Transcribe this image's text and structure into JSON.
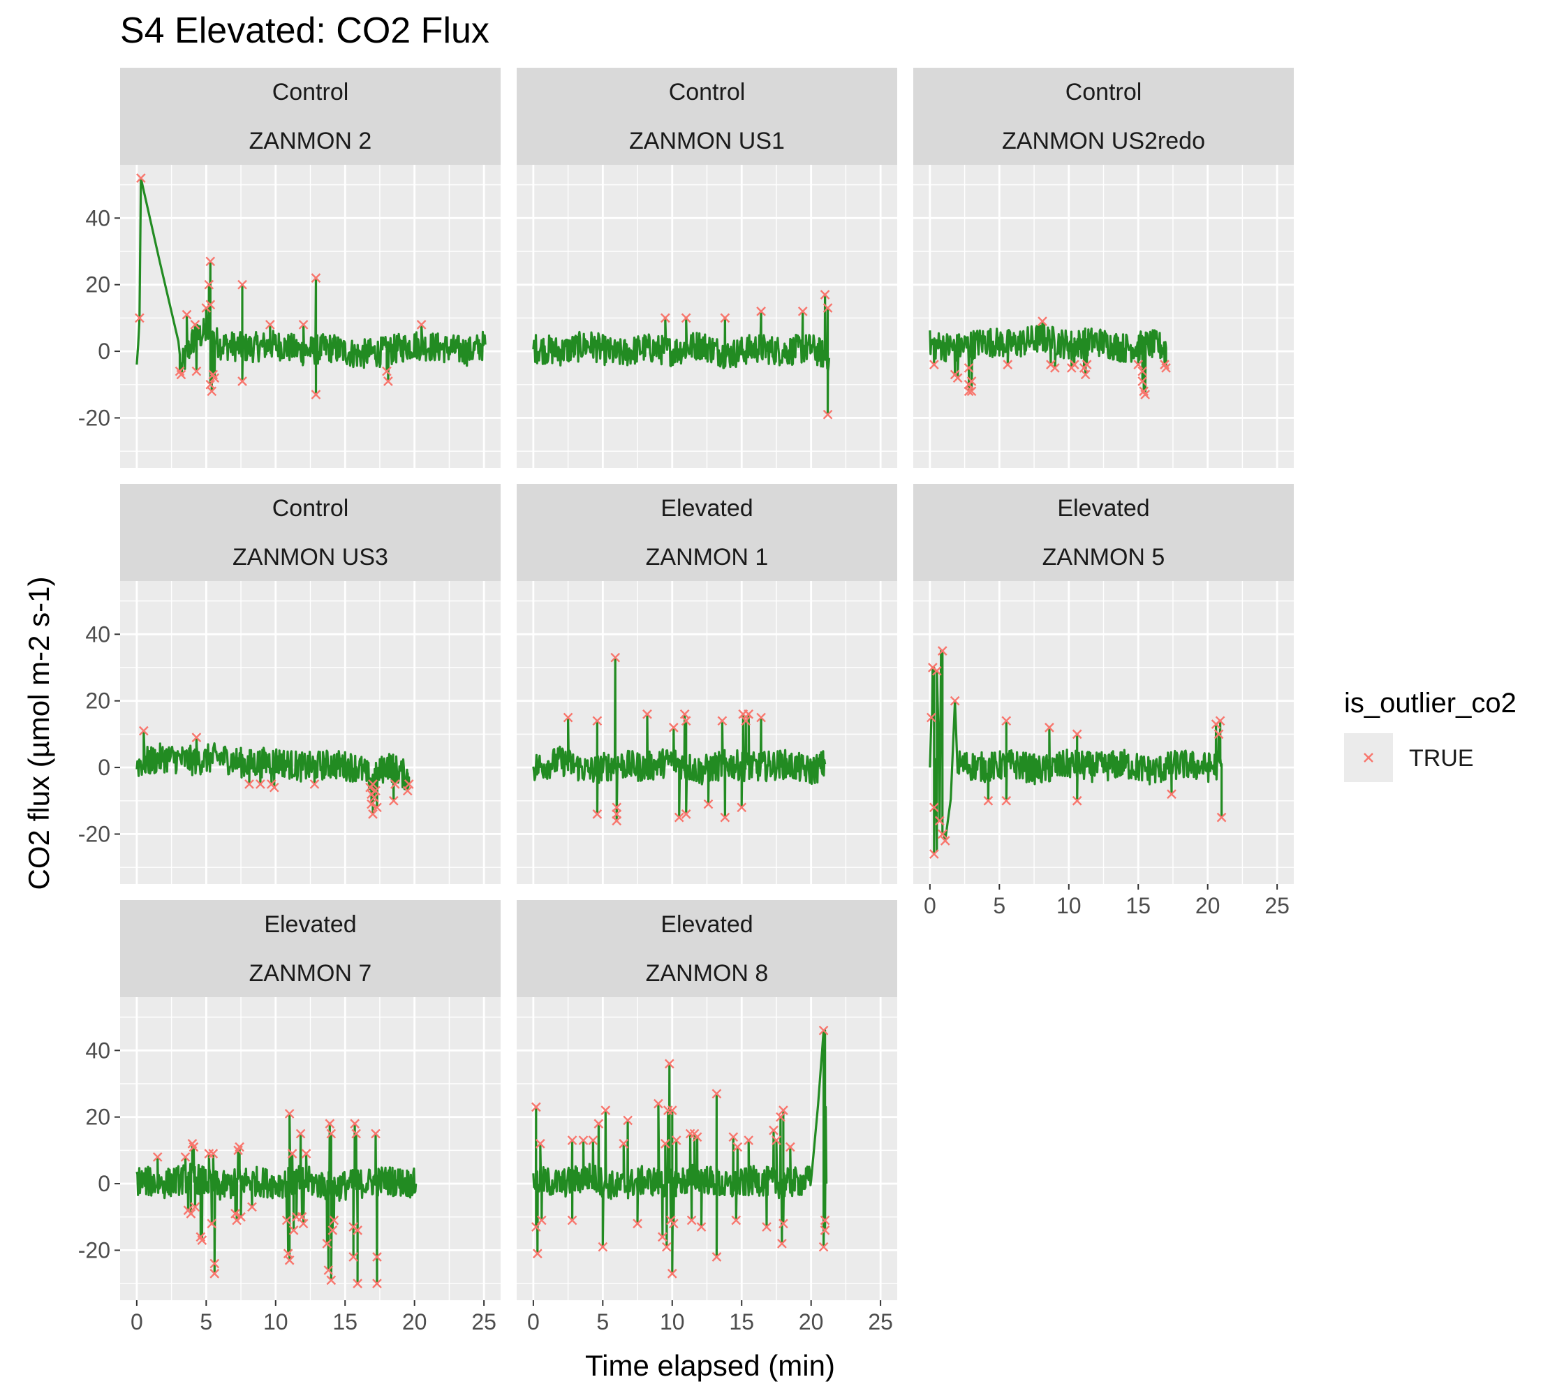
{
  "chart_data": {
    "type": "line",
    "title": "S4 Elevated: CO2 Flux",
    "xlabel": "Time elapsed (min)",
    "ylabel": "CO2 flux (µmol m-2 s-1)",
    "xlim": [
      -1.2,
      26.2
    ],
    "ylim": [
      -35,
      56
    ],
    "xticks": [
      0,
      5,
      10,
      15,
      20,
      25
    ],
    "yticks": [
      -20,
      0,
      20,
      40
    ],
    "grid": true,
    "line_color": "#228B22",
    "outlier_color": "#F8766D",
    "legend": {
      "title": "is_outlier_co2",
      "entries": [
        "TRUE"
      ],
      "placement": "right"
    },
    "panels": [
      {
        "group": "Control",
        "site": "ZANMON 2",
        "t_end": 25.1,
        "trace": [
          [
            0,
            -4
          ],
          [
            0.1,
            2
          ],
          [
            0.2,
            10
          ],
          [
            0.3,
            51
          ],
          [
            3.0,
            3
          ],
          [
            3.2,
            -5
          ],
          [
            4,
            3
          ],
          [
            5,
            6
          ],
          [
            6,
            2
          ],
          [
            8,
            1
          ],
          [
            10,
            2
          ],
          [
            12,
            0
          ],
          [
            14,
            1
          ],
          [
            16,
            -1
          ],
          [
            18,
            0
          ],
          [
            20,
            2
          ],
          [
            22,
            1
          ],
          [
            24,
            0
          ],
          [
            25.1,
            2
          ]
        ],
        "outliers": [
          [
            0.3,
            52
          ],
          [
            0.2,
            10
          ],
          [
            3.1,
            -6
          ],
          [
            3.2,
            -7
          ],
          [
            3.6,
            11
          ],
          [
            4.2,
            8
          ],
          [
            4.3,
            -6
          ],
          [
            5.0,
            13
          ],
          [
            5.2,
            20
          ],
          [
            5.3,
            27
          ],
          [
            5.3,
            14
          ],
          [
            5.3,
            -10
          ],
          [
            5.4,
            -12
          ],
          [
            5.5,
            -7
          ],
          [
            5.6,
            -8
          ],
          [
            7.6,
            20
          ],
          [
            7.6,
            -9
          ],
          [
            9.6,
            8
          ],
          [
            12.0,
            8
          ],
          [
            12.9,
            22
          ],
          [
            12.9,
            -13
          ],
          [
            18.0,
            -6
          ],
          [
            18.1,
            -9
          ],
          [
            20.5,
            8
          ]
        ]
      },
      {
        "group": "Control",
        "site": "ZANMON US1",
        "t_end": 21.3,
        "trace": [
          [
            0,
            1
          ],
          [
            2,
            0
          ],
          [
            4,
            2
          ],
          [
            6,
            -1
          ],
          [
            8,
            1
          ],
          [
            10,
            0
          ],
          [
            12,
            2
          ],
          [
            14,
            -1
          ],
          [
            16,
            1
          ],
          [
            18,
            0
          ],
          [
            20,
            1
          ],
          [
            21.3,
            -2
          ]
        ],
        "outliers": [
          [
            9.5,
            10
          ],
          [
            11.0,
            10
          ],
          [
            13.8,
            10
          ],
          [
            16.4,
            12
          ],
          [
            19.4,
            12
          ],
          [
            21.0,
            17
          ],
          [
            21.2,
            13
          ],
          [
            21.2,
            -19
          ]
        ]
      },
      {
        "group": "Control",
        "site": "ZANMON US2redo",
        "t_end": 17.0,
        "trace": [
          [
            0,
            2
          ],
          [
            2,
            1
          ],
          [
            4,
            3
          ],
          [
            6,
            2
          ],
          [
            8,
            4
          ],
          [
            10,
            2
          ],
          [
            12,
            3
          ],
          [
            14,
            1
          ],
          [
            16,
            2
          ],
          [
            17.0,
            1
          ]
        ],
        "outliers": [
          [
            0.3,
            -4
          ],
          [
            1.8,
            -7
          ],
          [
            2.0,
            -8
          ],
          [
            2.8,
            -5
          ],
          [
            2.8,
            -10
          ],
          [
            2.8,
            -12
          ],
          [
            3.0,
            -9
          ],
          [
            3.0,
            -12
          ],
          [
            5.6,
            -4
          ],
          [
            8.1,
            9
          ],
          [
            8.7,
            -4
          ],
          [
            9.0,
            -5
          ],
          [
            10.2,
            -5
          ],
          [
            10.4,
            -4
          ],
          [
            11.1,
            -5
          ],
          [
            11.2,
            -7
          ],
          [
            11.3,
            -4
          ],
          [
            15.0,
            -4
          ],
          [
            15.3,
            -6
          ],
          [
            15.3,
            -9
          ],
          [
            15.4,
            -12
          ],
          [
            15.5,
            -13
          ],
          [
            16.9,
            -4
          ],
          [
            17.0,
            -5
          ]
        ]
      },
      {
        "group": "Control",
        "site": "ZANMON US3",
        "t_end": 19.6,
        "trace": [
          [
            0,
            1
          ],
          [
            2,
            3
          ],
          [
            4,
            2
          ],
          [
            6,
            3
          ],
          [
            8,
            1
          ],
          [
            10,
            2
          ],
          [
            12,
            0
          ],
          [
            14,
            1
          ],
          [
            16,
            0
          ],
          [
            17,
            -4
          ],
          [
            18,
            1
          ],
          [
            19.6,
            -3
          ]
        ],
        "outliers": [
          [
            0.5,
            11
          ],
          [
            4.3,
            9
          ],
          [
            8.1,
            -5
          ],
          [
            8.9,
            -5
          ],
          [
            9.7,
            -5
          ],
          [
            9.9,
            -6
          ],
          [
            12.8,
            -5
          ],
          [
            16.8,
            -6
          ],
          [
            16.9,
            -8
          ],
          [
            16.9,
            -11
          ],
          [
            17.0,
            -14
          ],
          [
            17.0,
            -5
          ],
          [
            17.1,
            -9
          ],
          [
            17.2,
            -7
          ],
          [
            17.3,
            -12
          ],
          [
            18.5,
            -10
          ],
          [
            18.6,
            -5
          ],
          [
            19.5,
            -7
          ],
          [
            19.6,
            -5
          ]
        ]
      },
      {
        "group": "Elevated",
        "site": "ZANMON 1",
        "t_end": 21.0,
        "trace": [
          [
            0,
            0
          ],
          [
            2,
            2
          ],
          [
            4,
            -1
          ],
          [
            6,
            1
          ],
          [
            8,
            0
          ],
          [
            10,
            2
          ],
          [
            12,
            -1
          ],
          [
            14,
            1
          ],
          [
            16,
            0
          ],
          [
            18,
            1
          ],
          [
            20,
            -1
          ],
          [
            21.0,
            1
          ]
        ],
        "outliers": [
          [
            2.5,
            15
          ],
          [
            4.6,
            14
          ],
          [
            4.6,
            -14
          ],
          [
            5.9,
            33
          ],
          [
            6.0,
            -12
          ],
          [
            6.0,
            -14
          ],
          [
            6.0,
            -16
          ],
          [
            8.2,
            16
          ],
          [
            10.1,
            12
          ],
          [
            10.5,
            -15
          ],
          [
            10.9,
            16
          ],
          [
            11.0,
            14
          ],
          [
            11.0,
            -14
          ],
          [
            12.6,
            -11
          ],
          [
            13.6,
            14
          ],
          [
            13.8,
            -15
          ],
          [
            15.0,
            -12
          ],
          [
            15.1,
            16
          ],
          [
            15.3,
            14
          ],
          [
            15.5,
            16
          ],
          [
            16.4,
            15
          ]
        ]
      },
      {
        "group": "Elevated",
        "site": "ZANMON 5",
        "t_end": 21.0,
        "trace": [
          [
            0,
            0
          ],
          [
            0.3,
            30
          ],
          [
            0.5,
            -25
          ],
          [
            0.8,
            35
          ],
          [
            1.0,
            -20
          ],
          [
            2,
            1
          ],
          [
            4,
            0
          ],
          [
            6,
            1
          ],
          [
            8,
            -1
          ],
          [
            10,
            1
          ],
          [
            12,
            0
          ],
          [
            14,
            1
          ],
          [
            16,
            -1
          ],
          [
            18,
            1
          ],
          [
            20,
            0
          ],
          [
            21.0,
            1
          ]
        ],
        "outliers": [
          [
            0.1,
            15
          ],
          [
            0.2,
            30
          ],
          [
            0.3,
            -26
          ],
          [
            0.3,
            -12
          ],
          [
            0.5,
            29
          ],
          [
            0.7,
            -16
          ],
          [
            0.9,
            35
          ],
          [
            0.9,
            -20
          ],
          [
            1.1,
            -22
          ],
          [
            1.8,
            20
          ],
          [
            4.2,
            -10
          ],
          [
            5.5,
            14
          ],
          [
            5.5,
            -10
          ],
          [
            8.6,
            12
          ],
          [
            10.6,
            10
          ],
          [
            10.6,
            -10
          ],
          [
            17.4,
            -8
          ],
          [
            20.6,
            13
          ],
          [
            20.8,
            10
          ],
          [
            20.9,
            14
          ],
          [
            21.0,
            -15
          ]
        ]
      },
      {
        "group": "Elevated",
        "site": "ZANMON 7",
        "t_end": 20.1,
        "trace": [
          [
            0,
            1
          ],
          [
            2,
            0
          ],
          [
            4,
            2
          ],
          [
            6,
            -1
          ],
          [
            8,
            1
          ],
          [
            10,
            0
          ],
          [
            12,
            1
          ],
          [
            14,
            -1
          ],
          [
            16,
            0
          ],
          [
            18,
            1
          ],
          [
            20.1,
            0
          ]
        ],
        "outliers": [
          [
            1.5,
            8
          ],
          [
            3.5,
            8
          ],
          [
            3.7,
            -8
          ],
          [
            3.9,
            -9
          ],
          [
            4.0,
            12
          ],
          [
            4.1,
            11
          ],
          [
            4.2,
            -7
          ],
          [
            4.6,
            -16
          ],
          [
            4.7,
            -17
          ],
          [
            5.2,
            9
          ],
          [
            5.4,
            -12
          ],
          [
            5.5,
            9
          ],
          [
            5.6,
            -27
          ],
          [
            5.6,
            -24
          ],
          [
            7.1,
            -9
          ],
          [
            7.2,
            -11
          ],
          [
            7.3,
            10
          ],
          [
            7.4,
            11
          ],
          [
            7.5,
            -10
          ],
          [
            8.3,
            -7
          ],
          [
            10.8,
            -11
          ],
          [
            10.9,
            -21
          ],
          [
            11.0,
            -23
          ],
          [
            11.0,
            21
          ],
          [
            11.2,
            9
          ],
          [
            11.3,
            -14
          ],
          [
            11.5,
            -10
          ],
          [
            11.8,
            15
          ],
          [
            11.9,
            -10
          ],
          [
            12.0,
            -12
          ],
          [
            12.2,
            9
          ],
          [
            13.7,
            -18
          ],
          [
            13.8,
            -26
          ],
          [
            13.9,
            18
          ],
          [
            14.0,
            15
          ],
          [
            14.0,
            -29
          ],
          [
            14.1,
            -14
          ],
          [
            14.2,
            -11
          ],
          [
            15.6,
            -22
          ],
          [
            15.6,
            -13
          ],
          [
            15.7,
            18
          ],
          [
            15.8,
            15
          ],
          [
            15.9,
            -14
          ],
          [
            15.9,
            -30
          ],
          [
            17.2,
            15
          ],
          [
            17.3,
            -30
          ],
          [
            17.3,
            -22
          ]
        ]
      },
      {
        "group": "Elevated",
        "site": "ZANMON 8",
        "t_end": 21.1,
        "trace": [
          [
            0,
            1
          ],
          [
            2,
            0
          ],
          [
            4,
            2
          ],
          [
            6,
            -1
          ],
          [
            8,
            1
          ],
          [
            10,
            0
          ],
          [
            12,
            2
          ],
          [
            14,
            -1
          ],
          [
            16,
            1
          ],
          [
            18,
            0
          ],
          [
            20,
            1
          ],
          [
            21.0,
            46
          ],
          [
            21.1,
            0
          ]
        ],
        "outliers": [
          [
            0.2,
            23
          ],
          [
            0.2,
            -13
          ],
          [
            0.3,
            -21
          ],
          [
            0.5,
            12
          ],
          [
            0.6,
            -11
          ],
          [
            2.8,
            13
          ],
          [
            2.8,
            -11
          ],
          [
            3.6,
            13
          ],
          [
            4.3,
            13
          ],
          [
            4.7,
            18
          ],
          [
            5.0,
            -19
          ],
          [
            5.2,
            22
          ],
          [
            6.5,
            12
          ],
          [
            6.8,
            19
          ],
          [
            7.5,
            -12
          ],
          [
            9.0,
            24
          ],
          [
            9.3,
            -16
          ],
          [
            9.5,
            12
          ],
          [
            9.6,
            -19
          ],
          [
            9.7,
            22
          ],
          [
            9.8,
            36
          ],
          [
            9.9,
            -11
          ],
          [
            10.0,
            22
          ],
          [
            10.0,
            -27
          ],
          [
            10.1,
            -12
          ],
          [
            10.3,
            13
          ],
          [
            11.3,
            15
          ],
          [
            11.4,
            -11
          ],
          [
            11.6,
            15
          ],
          [
            11.8,
            14
          ],
          [
            12.1,
            -13
          ],
          [
            13.2,
            27
          ],
          [
            13.2,
            -22
          ],
          [
            14.4,
            14
          ],
          [
            14.6,
            -11
          ],
          [
            14.7,
            11
          ],
          [
            15.5,
            13
          ],
          [
            16.8,
            -13
          ],
          [
            17.3,
            16
          ],
          [
            17.5,
            13
          ],
          [
            17.8,
            20
          ],
          [
            17.9,
            -18
          ],
          [
            18.0,
            22
          ],
          [
            18.0,
            -12
          ],
          [
            18.5,
            11
          ],
          [
            20.9,
            46
          ],
          [
            20.9,
            -19
          ],
          [
            21.0,
            -11
          ],
          [
            21.0,
            -14
          ]
        ]
      }
    ]
  }
}
